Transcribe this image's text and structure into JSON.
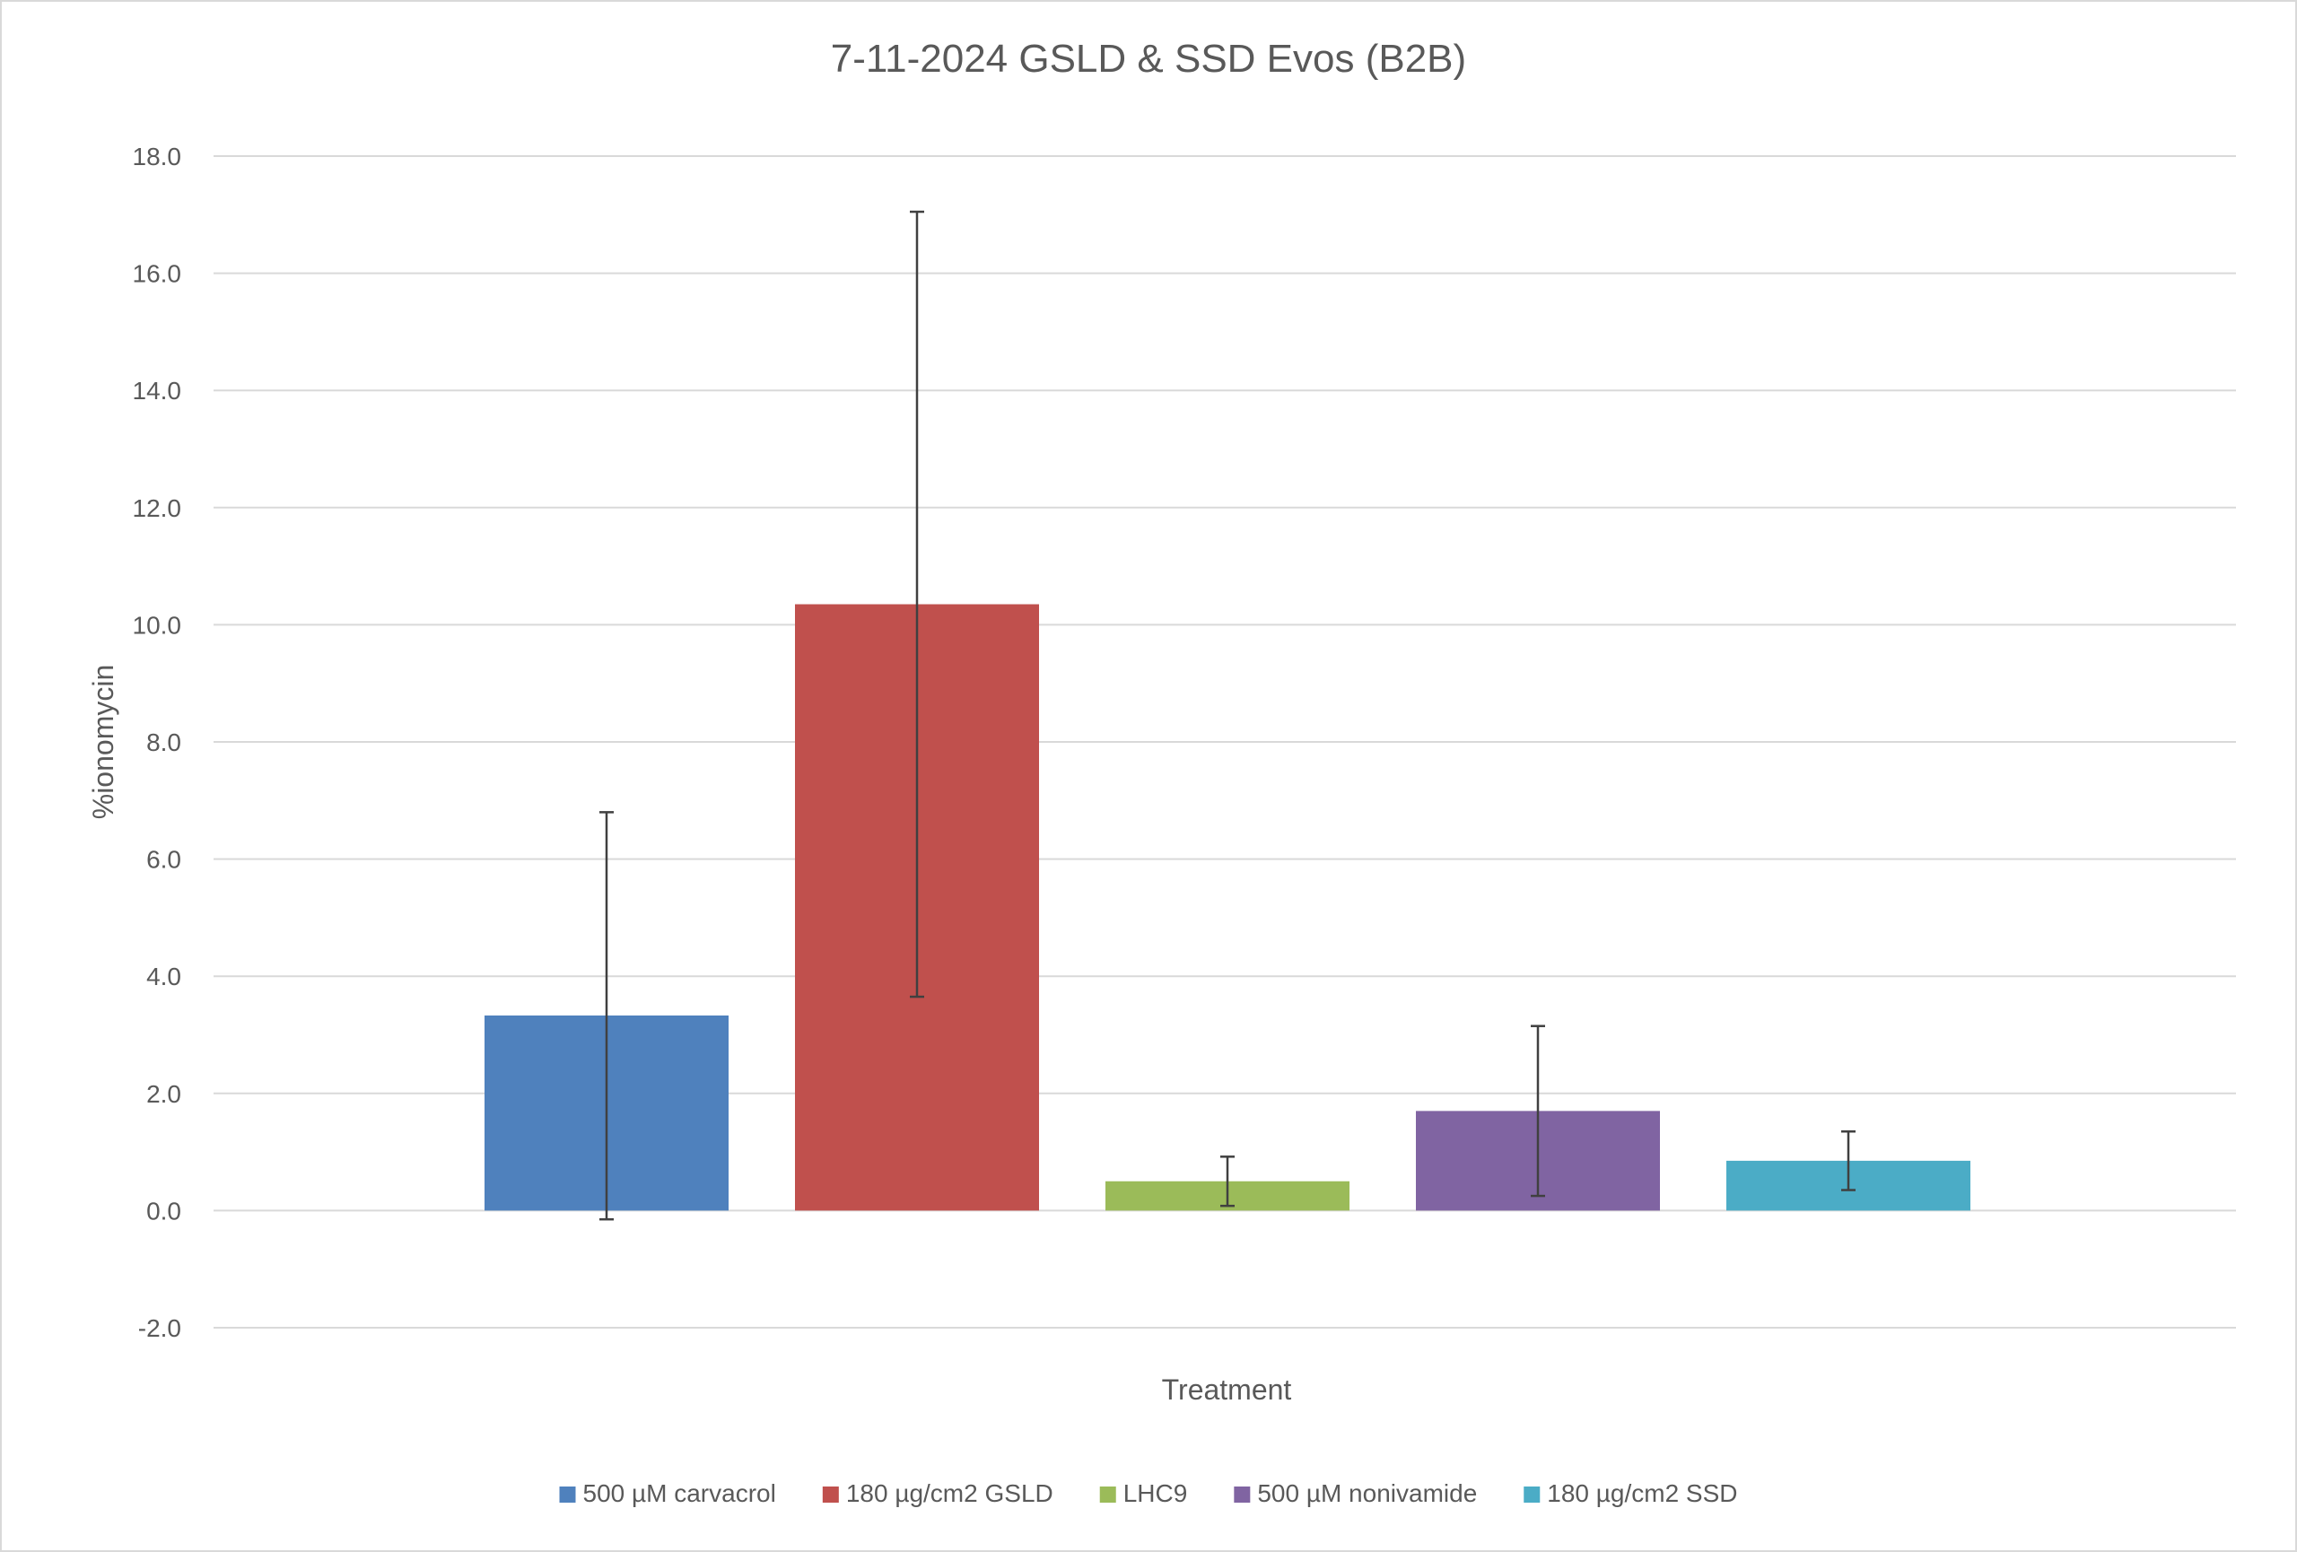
{
  "chart_data": {
    "type": "bar",
    "title": "7-11-2024 GSLD & SSD Evos (B2B)",
    "xlabel": "Treatment",
    "ylabel": "%ionomycin",
    "ylim": [
      -2.0,
      18.0
    ],
    "yticks": [
      "18.0",
      "16.0",
      "14.0",
      "12.0",
      "10.0",
      "8.0",
      "6.0",
      "4.0",
      "2.0",
      "0.0",
      "-2.0"
    ],
    "ytick_values": [
      18,
      16,
      14,
      12,
      10,
      8,
      6,
      4,
      2,
      0,
      -2
    ],
    "grid": true,
    "legend_position": "bottom",
    "series": [
      {
        "name": "500 µM carvacrol",
        "value": 3.33,
        "err_low": -0.15,
        "err_high": 6.8,
        "color": "#4f81bd"
      },
      {
        "name": "180 µg/cm2 GSLD",
        "value": 10.35,
        "err_low": 3.65,
        "err_high": 17.05,
        "color": "#c0504d"
      },
      {
        "name": "LHC9",
        "value": 0.5,
        "err_low": 0.08,
        "err_high": 0.92,
        "color": "#9bbb59"
      },
      {
        "name": "500 µM nonivamide",
        "value": 1.7,
        "err_low": 0.25,
        "err_high": 3.15,
        "color": "#8064a2"
      },
      {
        "name": "180 µg/cm2 SSD",
        "value": 0.85,
        "err_low": 0.35,
        "err_high": 1.35,
        "color": "#4bacc6"
      }
    ]
  }
}
